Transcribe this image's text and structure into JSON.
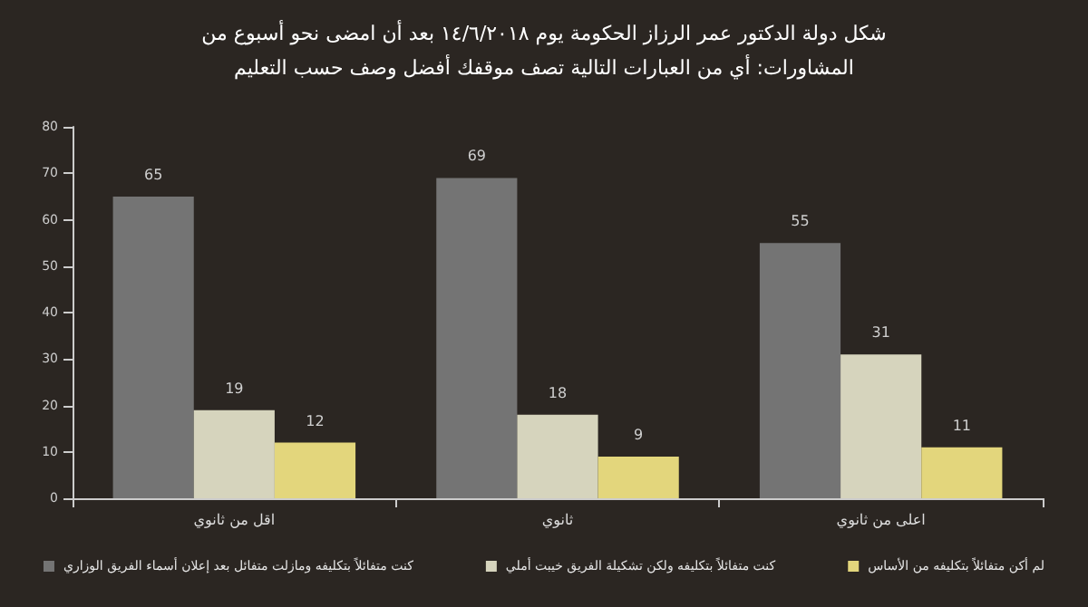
{
  "chart_data": {
    "type": "bar",
    "title": "شكل دولة الدكتور عمر الرزاز الحكومة يوم ١٤/٦/٢٠١٨ بعد أن امضى نحو أسبوع من",
    "subtitle": "المشاورات: أي من العبارات التالية تصف موقفك أفضل وصف حسب التعليم",
    "categories": [
      "اقل من ثانوي",
      "ثانوي",
      "اعلى من ثانوي"
    ],
    "series": [
      {
        "name": "كنت متفائلاً بتكليفه ومازلت متفائل بعد إعلان أسماء الفريق الوزاري",
        "color": "#747474",
        "values": [
          65,
          69,
          55
        ]
      },
      {
        "name": "كنت متفائلاً بتكليفه ولكن تشكيلة الفريق خيبت أملي",
        "color": "#d6d4bd",
        "values": [
          19,
          18,
          31
        ]
      },
      {
        "name": "لم أكن متفائلاً بتكليفه من الأساس",
        "color": "#e3d67c",
        "values": [
          12,
          9,
          11
        ]
      }
    ],
    "ylim": [
      0,
      80
    ],
    "yticks": [
      0,
      10,
      20,
      30,
      40,
      50,
      60,
      70,
      80
    ],
    "grid": false,
    "legend": "bottom",
    "data_labels": true
  }
}
